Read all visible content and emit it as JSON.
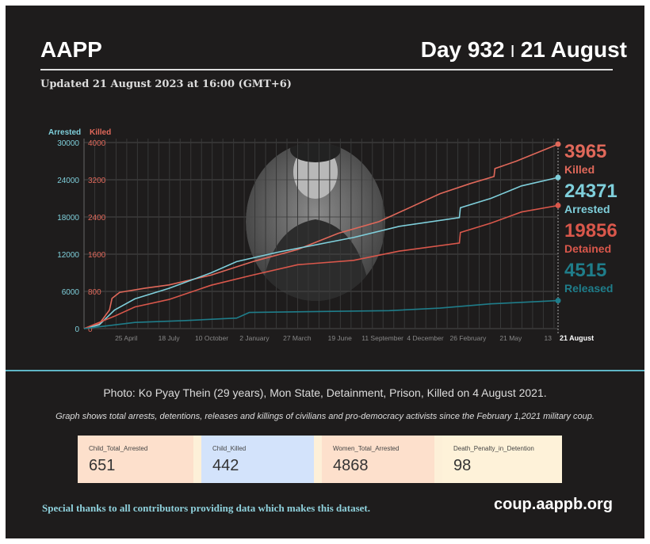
{
  "header": {
    "brand": "AAPP",
    "day": "Day 932",
    "separator": "|",
    "date": "21 August",
    "updated": "Updated 21 August 2023 at 16:00 (GMT+6)"
  },
  "chart_data": {
    "type": "line",
    "axis_labels": {
      "left": "Arrested",
      "right": "Killed"
    },
    "left_ticks": [
      0,
      6000,
      12000,
      18000,
      24000,
      30000
    ],
    "right_ticks": [
      0,
      800,
      1600,
      2400,
      3200,
      4000
    ],
    "ylim_arrested": [
      0,
      30000
    ],
    "ylim_killed": [
      0,
      4000
    ],
    "xlim_days": [
      0,
      932
    ],
    "x_ticks": [
      {
        "day": 83,
        "label": "25 April"
      },
      {
        "day": 167,
        "label": "18 July"
      },
      {
        "day": 251,
        "label": "10 October"
      },
      {
        "day": 335,
        "label": "2 January"
      },
      {
        "day": 419,
        "label": "27 March"
      },
      {
        "day": 503,
        "label": "19 June"
      },
      {
        "day": 587,
        "label": "11 September"
      },
      {
        "day": 671,
        "label": "4 December"
      },
      {
        "day": 755,
        "label": "26 February"
      },
      {
        "day": 839,
        "label": "21 May"
      },
      {
        "day": 923,
        "label": "13"
      },
      {
        "day": 932,
        "label": "21 August"
      }
    ],
    "series": [
      {
        "name": "Killed",
        "axis": "killed",
        "color": "#e0685a",
        "value": "3965",
        "points": [
          [
            0,
            0
          ],
          [
            30,
            100
          ],
          [
            50,
            400
          ],
          [
            55,
            650
          ],
          [
            70,
            780
          ],
          [
            120,
            870
          ],
          [
            167,
            940
          ],
          [
            250,
            1150
          ],
          [
            335,
            1450
          ],
          [
            420,
            1700
          ],
          [
            500,
            2050
          ],
          [
            580,
            2300
          ],
          [
            640,
            2600
          ],
          [
            700,
            2900
          ],
          [
            760,
            3120
          ],
          [
            806,
            3270
          ],
          [
            808,
            3440
          ],
          [
            850,
            3600
          ],
          [
            932,
            3965
          ]
        ]
      },
      {
        "name": "Arrested",
        "axis": "arrested",
        "color": "#7fcfdb",
        "value": "24371",
        "points": [
          [
            0,
            0
          ],
          [
            30,
            600
          ],
          [
            60,
            3000
          ],
          [
            100,
            4800
          ],
          [
            167,
            6500
          ],
          [
            250,
            9000
          ],
          [
            300,
            10800
          ],
          [
            380,
            12300
          ],
          [
            530,
            14700
          ],
          [
            620,
            16500
          ],
          [
            738,
            17900
          ],
          [
            740,
            19500
          ],
          [
            800,
            21000
          ],
          [
            860,
            23000
          ],
          [
            932,
            24371
          ]
        ]
      },
      {
        "name": "Detained",
        "axis": "arrested",
        "color": "#d9574b",
        "value": "19856",
        "points": [
          [
            0,
            0
          ],
          [
            60,
            2000
          ],
          [
            100,
            3500
          ],
          [
            167,
            4700
          ],
          [
            250,
            7000
          ],
          [
            330,
            8600
          ],
          [
            420,
            10300
          ],
          [
            530,
            11000
          ],
          [
            620,
            12500
          ],
          [
            738,
            13800
          ],
          [
            740,
            15500
          ],
          [
            800,
            17000
          ],
          [
            860,
            18800
          ],
          [
            932,
            19856
          ]
        ]
      },
      {
        "name": "Released",
        "axis": "arrested",
        "color": "#1f7d8a",
        "value": "4515",
        "points": [
          [
            0,
            0
          ],
          [
            60,
            600
          ],
          [
            100,
            1000
          ],
          [
            200,
            1300
          ],
          [
            300,
            1700
          ],
          [
            325,
            2600
          ],
          [
            400,
            2700
          ],
          [
            600,
            2900
          ],
          [
            700,
            3300
          ],
          [
            800,
            4000
          ],
          [
            932,
            4515
          ]
        ]
      }
    ]
  },
  "caption": {
    "photo": "Photo: Ko Pyay Thein (29 years), Mon State, Detainment, Prison, Killed on 4 August 2021.",
    "note": "Graph shows total arrests, detentions, releases and killings of civilians and pro-democracy activists since the February 1,2021 military coup."
  },
  "cards": [
    {
      "label": "Child_Total_Arrested",
      "value": "651",
      "color": "#fde0cc"
    },
    {
      "label": "Child_Killed",
      "value": "442",
      "color": "#d3e3fb"
    },
    {
      "label": "Women_Total_Arrested",
      "value": "4868",
      "color": "#fde0cc"
    },
    {
      "label": "Death_Penalty_in_Detention",
      "value": "98",
      "color": "#fef2d9"
    }
  ],
  "footer": {
    "thanks": "Special thanks to all contributors providing data which makes this dataset.",
    "site": "coup.aappb.org"
  }
}
